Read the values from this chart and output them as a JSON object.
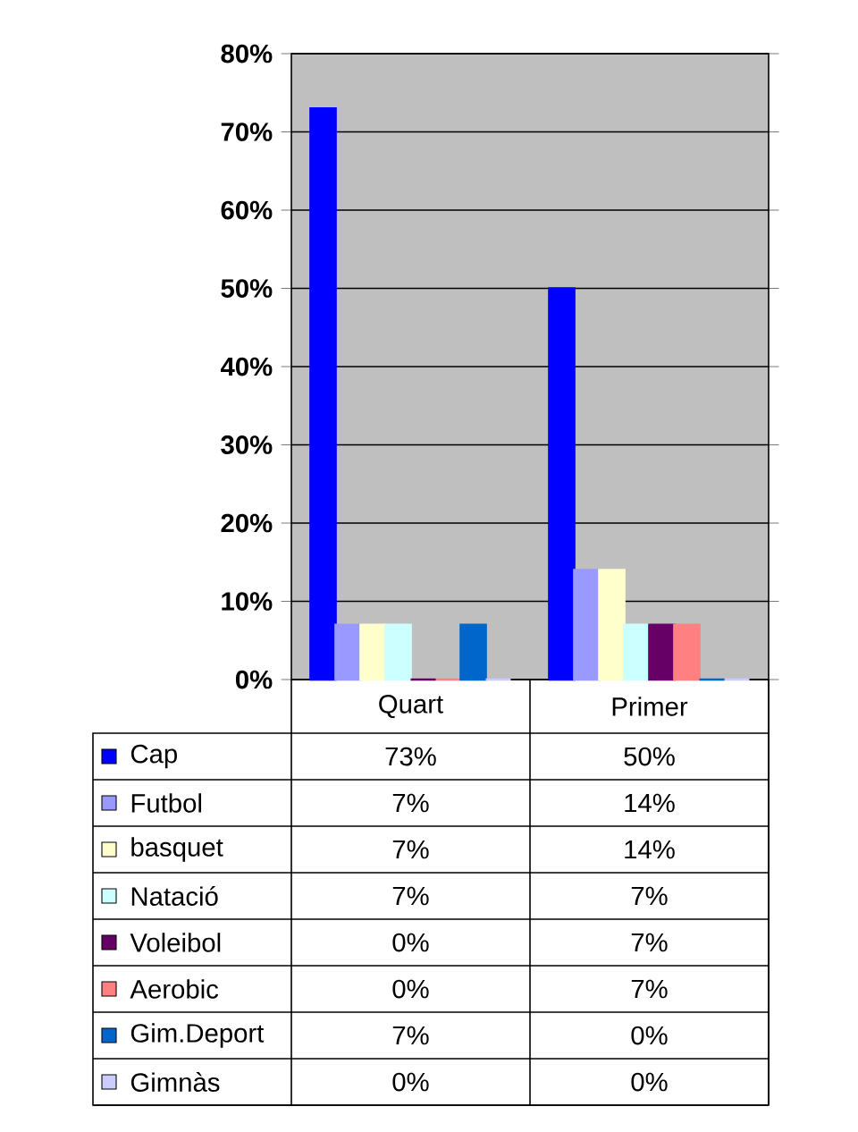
{
  "chart_data": {
    "type": "bar",
    "categories": [
      "Quart",
      "Primer"
    ],
    "series": [
      {
        "name": "Cap",
        "color": "#0000ff",
        "values": [
          73,
          50
        ],
        "value_labels": [
          "73%",
          "50%"
        ]
      },
      {
        "name": "Futbol",
        "color": "#9999ff",
        "values": [
          7,
          14
        ],
        "value_labels": [
          "7%",
          "14%"
        ]
      },
      {
        "name": "basquet",
        "color": "#ffffcc",
        "values": [
          7,
          14
        ],
        "value_labels": [
          "7%",
          "14%"
        ]
      },
      {
        "name": "Natació",
        "color": "#ccffff",
        "values": [
          7,
          7
        ],
        "value_labels": [
          "7%",
          "7%"
        ]
      },
      {
        "name": "Voleibol",
        "color": "#660066",
        "values": [
          0,
          7
        ],
        "value_labels": [
          "0%",
          "7%"
        ]
      },
      {
        "name": "Aerobic",
        "color": "#ff8080",
        "values": [
          0,
          7
        ],
        "value_labels": [
          "0%",
          "7%"
        ]
      },
      {
        "name": "Gim.Deport",
        "color": "#0066cc",
        "values": [
          7,
          0
        ],
        "value_labels": [
          "7%",
          "0%"
        ]
      },
      {
        "name": "Gimnàs",
        "color": "#ccccff",
        "values": [
          0,
          0
        ],
        "value_labels": [
          "0%",
          "0%"
        ]
      }
    ],
    "ylim": [
      0,
      80
    ],
    "yticks": [
      {
        "value": 0,
        "label": "0%"
      },
      {
        "value": 10,
        "label": "10%"
      },
      {
        "value": 20,
        "label": "20%"
      },
      {
        "value": 30,
        "label": "30%"
      },
      {
        "value": 40,
        "label": "40%"
      },
      {
        "value": 50,
        "label": "50%"
      },
      {
        "value": 60,
        "label": "60%"
      },
      {
        "value": 70,
        "label": "70%"
      },
      {
        "value": 80,
        "label": "80%"
      }
    ],
    "grid": "y",
    "legend": "bottom"
  }
}
